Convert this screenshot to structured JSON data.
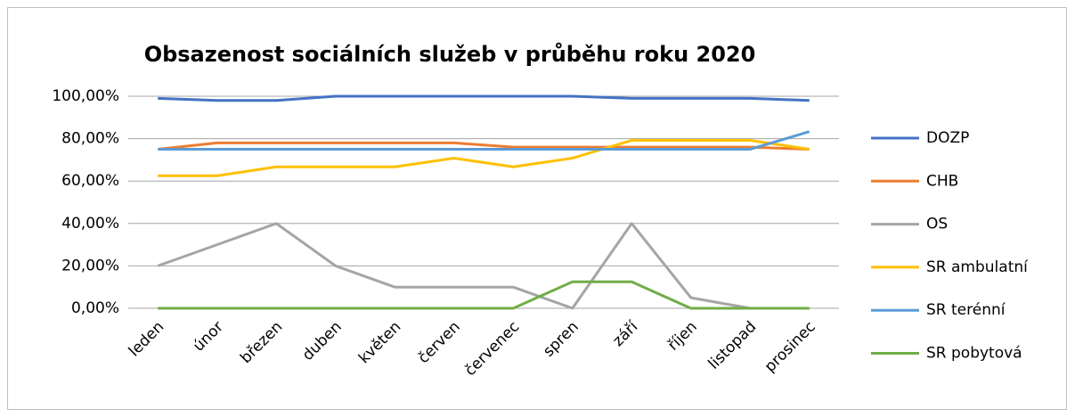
{
  "chart_data": {
    "type": "line",
    "title": "Obsazenost sociálních služeb v průběhu roku 2020",
    "categories": [
      "leden",
      "únor",
      "březen",
      "duben",
      "květen",
      "červen",
      "červenec",
      "spren",
      "září",
      "říjen",
      "listopad",
      "prosinec"
    ],
    "series": [
      {
        "name": "DOZP",
        "color": "#4472c4",
        "values": [
          99,
          98,
          98,
          100,
          100,
          100,
          100,
          100,
          99,
          99,
          99,
          98
        ]
      },
      {
        "name": "CHB",
        "color": "#ed7d31",
        "values": [
          75,
          78,
          78,
          78,
          78,
          78,
          76,
          76,
          76,
          76,
          76,
          75
        ]
      },
      {
        "name": "OS",
        "color": "#a5a5a5",
        "values": [
          20,
          30,
          40,
          20,
          10,
          10,
          10,
          0,
          40,
          5,
          0,
          0
        ]
      },
      {
        "name": "SR ambulatní",
        "color": "#ffc000",
        "values": [
          62.5,
          62.5,
          66.7,
          66.7,
          66.7,
          70.8,
          66.7,
          70.8,
          79.2,
          79.2,
          79.2,
          75
        ]
      },
      {
        "name": "SR terénní",
        "color": "#5b9bd5",
        "values": [
          75,
          75,
          75,
          75,
          75,
          75,
          75,
          75,
          75,
          75,
          75,
          83.3
        ]
      },
      {
        "name": "SR pobytová",
        "color": "#70ad47",
        "values": [
          0,
          0,
          0,
          0,
          0,
          0,
          0,
          12.5,
          12.5,
          0,
          0,
          0
        ]
      }
    ],
    "ylim": [
      0,
      100
    ],
    "yticks": [
      {
        "value": 0,
        "label": "0,00%"
      },
      {
        "value": 20,
        "label": "20,00%"
      },
      {
        "value": 40,
        "label": "40,00%"
      },
      {
        "value": 60,
        "label": "60,00%"
      },
      {
        "value": 80,
        "label": "80,00%"
      },
      {
        "value": 100,
        "label": "100,00%"
      }
    ],
    "grid": true,
    "legend": "right"
  }
}
